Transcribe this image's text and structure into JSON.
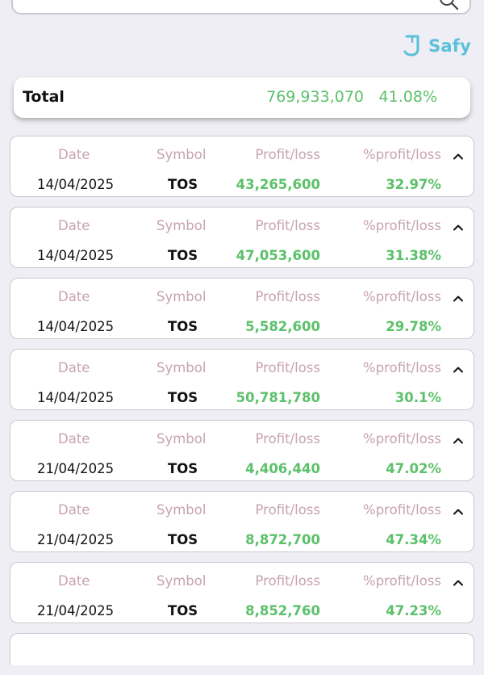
{
  "brand": {
    "name": "Safy",
    "color": "#5bc0d9",
    "icon": "safy-logo-icon"
  },
  "search": {
    "icon": "search-icon"
  },
  "total": {
    "label": "Total",
    "amount": "769,933,070",
    "percent": "41.08%"
  },
  "columns": {
    "date": "Date",
    "symbol": "Symbol",
    "profit": "Profit/loss",
    "percent": "%profit/loss"
  },
  "colors": {
    "positive": "#5cc16a",
    "header_text": "#c7a3b0",
    "background": "#eeeef4"
  },
  "rows": [
    {
      "date": "14/04/2025",
      "symbol": "TOS",
      "profit": "43,265,600",
      "percent": "32.97%"
    },
    {
      "date": "14/04/2025",
      "symbol": "TOS",
      "profit": "47,053,600",
      "percent": "31.38%"
    },
    {
      "date": "14/04/2025",
      "symbol": "TOS",
      "profit": "5,582,600",
      "percent": "29.78%"
    },
    {
      "date": "14/04/2025",
      "symbol": "TOS",
      "profit": "50,781,780",
      "percent": "30.1%"
    },
    {
      "date": "21/04/2025",
      "symbol": "TOS",
      "profit": "4,406,440",
      "percent": "47.02%"
    },
    {
      "date": "21/04/2025",
      "symbol": "TOS",
      "profit": "8,872,700",
      "percent": "47.34%"
    },
    {
      "date": "21/04/2025",
      "symbol": "TOS",
      "profit": "8,852,760",
      "percent": "47.23%"
    }
  ]
}
